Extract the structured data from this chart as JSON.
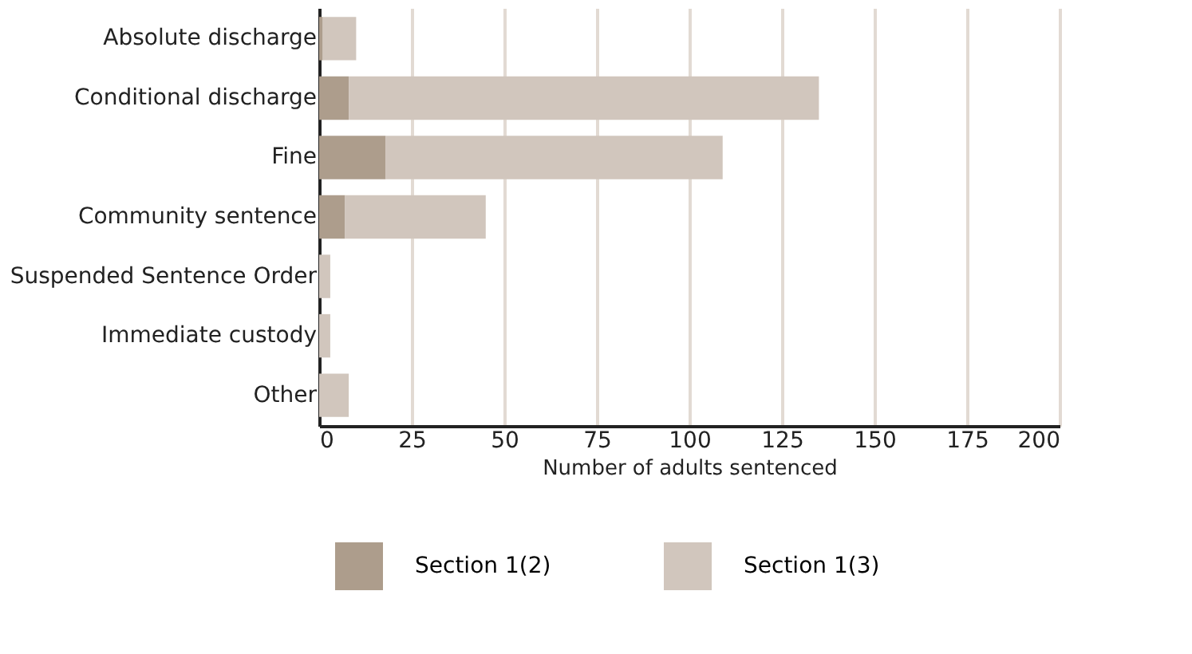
{
  "chart_data": {
    "type": "bar",
    "orientation": "horizontal",
    "stacked": true,
    "categories": [
      "Absolute discharge",
      "Conditional discharge",
      "Fine",
      "Community sentence",
      "Suspended Sentence Order",
      "Immediate custody",
      "Other"
    ],
    "series": [
      {
        "name": "Section 1(2)",
        "color": "#ad9d8c",
        "values": [
          1,
          8,
          18,
          7,
          0,
          0,
          0
        ]
      },
      {
        "name": "Section 1(3)",
        "color": "#d1c6bd",
        "values": [
          9,
          127,
          91,
          38,
          3,
          3,
          8
        ]
      }
    ],
    "xlabel": "Number of adults sentenced",
    "xlim": [
      0,
      200
    ],
    "xticks": [
      0,
      25,
      50,
      75,
      100,
      125,
      150,
      175,
      200
    ],
    "grid": "x",
    "legend": "bottom"
  }
}
